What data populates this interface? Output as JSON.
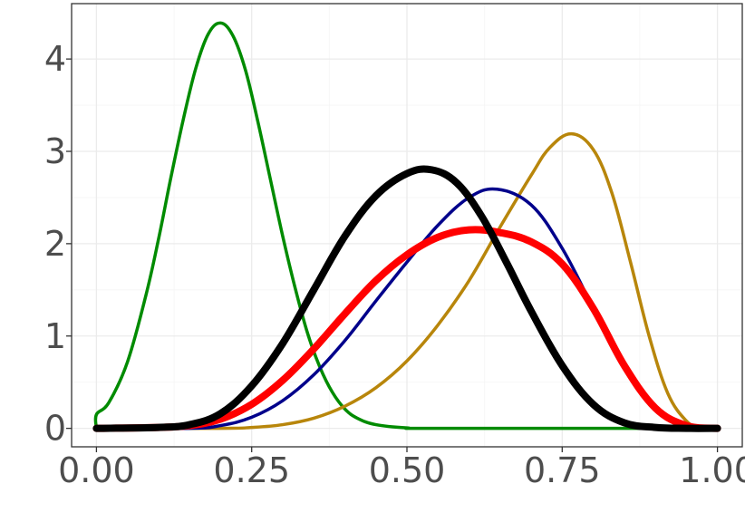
{
  "chart_data": {
    "type": "line",
    "title": "",
    "xlabel": "",
    "ylabel": "",
    "xlim": [
      -0.04,
      1.04
    ],
    "ylim": [
      -0.2,
      4.6
    ],
    "x_ticks": [
      {
        "value": 0.0,
        "label": "0.00"
      },
      {
        "value": 0.25,
        "label": "0.25"
      },
      {
        "value": 0.5,
        "label": "0.50"
      },
      {
        "value": 0.75,
        "label": "0.75"
      },
      {
        "value": 1.0,
        "label": "1.00"
      }
    ],
    "y_ticks": [
      {
        "value": 0,
        "label": "0"
      },
      {
        "value": 1,
        "label": "1"
      },
      {
        "value": 2,
        "label": "2"
      },
      {
        "value": 3,
        "label": "3"
      },
      {
        "value": 4,
        "label": "4"
      }
    ],
    "grid": true,
    "legend": "none",
    "series": [
      {
        "color": "#008B00",
        "width": "medium",
        "x": [
          0.0,
          0.0,
          0.02,
          0.05,
          0.08,
          0.1,
          0.12,
          0.14,
          0.16,
          0.18,
          0.2,
          0.22,
          0.24,
          0.26,
          0.28,
          0.3,
          0.32,
          0.34,
          0.36,
          0.38,
          0.4,
          0.42,
          0.45,
          0.5,
          0.55,
          1.0
        ],
        "y": [
          0.0,
          0.15,
          0.28,
          0.72,
          1.45,
          2.05,
          2.72,
          3.35,
          3.9,
          4.27,
          4.39,
          4.25,
          3.88,
          3.32,
          2.7,
          2.08,
          1.52,
          1.03,
          0.66,
          0.39,
          0.21,
          0.11,
          0.04,
          0.005,
          0.0,
          0.0
        ]
      },
      {
        "color": "#B8860B",
        "width": "medium",
        "x": [
          0.0,
          0.2,
          0.25,
          0.3,
          0.35,
          0.4,
          0.45,
          0.5,
          0.55,
          0.6,
          0.65,
          0.7,
          0.73,
          0.765,
          0.8,
          0.83,
          0.86,
          0.89,
          0.92,
          0.95,
          0.97,
          1.0
        ],
        "y": [
          0.0,
          0.0,
          0.01,
          0.04,
          0.11,
          0.24,
          0.44,
          0.73,
          1.12,
          1.6,
          2.18,
          2.74,
          3.04,
          3.19,
          3.02,
          2.55,
          1.8,
          1.0,
          0.38,
          0.08,
          0.02,
          0.0
        ]
      },
      {
        "color": "#00008B",
        "width": "medium",
        "x": [
          0.0,
          0.15,
          0.2,
          0.25,
          0.3,
          0.35,
          0.4,
          0.45,
          0.5,
          0.55,
          0.6,
          0.645,
          0.7,
          0.75,
          0.8,
          0.85,
          0.9,
          0.95,
          1.0
        ],
        "y": [
          0.0,
          0.0,
          0.03,
          0.12,
          0.3,
          0.58,
          0.95,
          1.38,
          1.8,
          2.2,
          2.5,
          2.59,
          2.42,
          1.95,
          1.3,
          0.65,
          0.2,
          0.03,
          0.0
        ]
      },
      {
        "color": "#FF0000",
        "width": "thick",
        "x": [
          0.0,
          0.1,
          0.15,
          0.2,
          0.25,
          0.3,
          0.35,
          0.4,
          0.45,
          0.5,
          0.55,
          0.6,
          0.65,
          0.7,
          0.75,
          0.8,
          0.85,
          0.9,
          0.95,
          1.0
        ],
        "y": [
          0.0,
          0.01,
          0.03,
          0.1,
          0.26,
          0.52,
          0.86,
          1.24,
          1.6,
          1.88,
          2.07,
          2.15,
          2.12,
          2.02,
          1.78,
          1.3,
          0.68,
          0.22,
          0.03,
          0.0
        ]
      },
      {
        "color": "#000000",
        "width": "thick",
        "x": [
          0.0,
          0.1,
          0.15,
          0.2,
          0.25,
          0.3,
          0.35,
          0.4,
          0.45,
          0.5,
          0.54,
          0.58,
          0.62,
          0.66,
          0.7,
          0.75,
          0.8,
          0.85,
          0.9,
          0.95,
          1.0
        ],
        "y": [
          0.0,
          0.01,
          0.04,
          0.16,
          0.46,
          0.92,
          1.5,
          2.08,
          2.52,
          2.76,
          2.8,
          2.66,
          2.3,
          1.8,
          1.27,
          0.68,
          0.26,
          0.06,
          0.01,
          0.0,
          0.0
        ]
      }
    ]
  }
}
